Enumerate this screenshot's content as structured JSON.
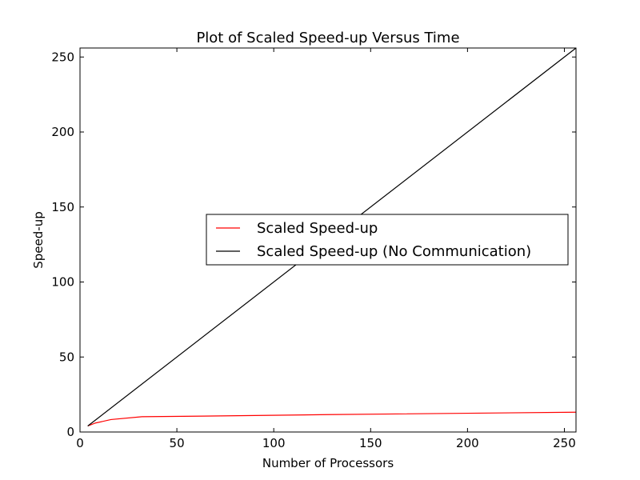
{
  "chart_data": {
    "type": "line",
    "title": "Plot of Scaled Speed-up Versus Time",
    "xlabel": "Number of Processors",
    "ylabel": "Speed-up",
    "xlim": [
      0,
      256
    ],
    "ylim": [
      0,
      256
    ],
    "xticks": [
      0,
      50,
      100,
      150,
      200,
      250
    ],
    "yticks": [
      0,
      50,
      100,
      150,
      200,
      250
    ],
    "grid": false,
    "legend_position": "center-right",
    "series": [
      {
        "name": "Scaled Speed-up",
        "color": "#ff0000",
        "x": [
          4,
          8,
          16,
          32,
          64,
          128,
          256
        ],
        "y": [
          4.0,
          6.0,
          8.3,
          10.2,
          10.6,
          11.6,
          13.2
        ]
      },
      {
        "name": "Scaled Speed-up (No Communication)",
        "color": "#000000",
        "x": [
          4,
          256
        ],
        "y": [
          4,
          256
        ]
      }
    ]
  }
}
